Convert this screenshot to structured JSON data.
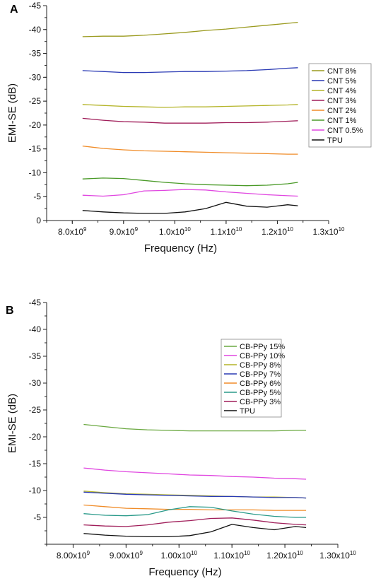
{
  "chart_data": [
    {
      "panel_label": "A",
      "type": "line",
      "xlabel": "Frequency (Hz)",
      "ylabel": "EMI-SE (dB)",
      "xlim": [
        7500000000.0,
        13000000000.0
      ],
      "ylim": [
        0,
        -45
      ],
      "x_ticks": [
        {
          "value": 8000000000.0,
          "mantissa": "8.0x10",
          "exp": "9"
        },
        {
          "value": 9000000000.0,
          "mantissa": "9.0x10",
          "exp": "9"
        },
        {
          "value": 10000000000.0,
          "mantissa": "1.0x10",
          "exp": "10"
        },
        {
          "value": 11000000000.0,
          "mantissa": "1.1x10",
          "exp": "10"
        },
        {
          "value": 12000000000.0,
          "mantissa": "1.2x10",
          "exp": "10"
        },
        {
          "value": 13000000000.0,
          "mantissa": "1.3x10",
          "exp": "10"
        }
      ],
      "y_ticks": [
        {
          "value": -45,
          "label": "-45"
        },
        {
          "value": -40,
          "label": "-40"
        },
        {
          "value": -35,
          "label": "-35"
        },
        {
          "value": -30,
          "label": "-30"
        },
        {
          "value": -25,
          "label": "-25"
        },
        {
          "value": -20,
          "label": "-20"
        },
        {
          "value": -15,
          "label": "-15"
        },
        {
          "value": -10,
          "label": "-10"
        },
        {
          "value": -5,
          "label": "-5"
        },
        {
          "value": 0,
          "label": "0"
        }
      ],
      "legend_position": "right",
      "x": [
        8200000000.0,
        8600000000.0,
        9000000000.0,
        9400000000.0,
        9800000000.0,
        10200000000.0,
        10600000000.0,
        11000000000.0,
        11400000000.0,
        11800000000.0,
        12200000000.0,
        12400000000.0
      ],
      "series": [
        {
          "name": "CNT 8%",
          "color": "#9a9a1e",
          "values": [
            -38.5,
            -38.6,
            -38.6,
            -38.8,
            -39.1,
            -39.4,
            -39.8,
            -40.1,
            -40.5,
            -40.9,
            -41.3,
            -41.5
          ]
        },
        {
          "name": "CNT 5%",
          "color": "#2a3ab4",
          "values": [
            -31.4,
            -31.2,
            -31.0,
            -31.0,
            -31.1,
            -31.2,
            -31.2,
            -31.3,
            -31.4,
            -31.6,
            -31.9,
            -32.0
          ]
        },
        {
          "name": "CNT 4%",
          "color": "#b4b428",
          "values": [
            -24.3,
            -24.1,
            -23.9,
            -23.8,
            -23.7,
            -23.8,
            -23.8,
            -23.9,
            -24.0,
            -24.1,
            -24.2,
            -24.3
          ]
        },
        {
          "name": "CNT 3%",
          "color": "#a01e5a",
          "values": [
            -21.4,
            -21.0,
            -20.7,
            -20.6,
            -20.4,
            -20.4,
            -20.4,
            -20.5,
            -20.5,
            -20.6,
            -20.8,
            -20.9
          ]
        },
        {
          "name": "CNT 2%",
          "color": "#f08c28",
          "values": [
            -15.6,
            -15.1,
            -14.8,
            -14.6,
            -14.5,
            -14.4,
            -14.3,
            -14.2,
            -14.1,
            -14.0,
            -13.9,
            -13.9
          ]
        },
        {
          "name": "CNT 1%",
          "color": "#4a9a28",
          "values": [
            -8.7,
            -8.9,
            -8.8,
            -8.4,
            -8.0,
            -7.7,
            -7.5,
            -7.4,
            -7.3,
            -7.4,
            -7.7,
            -8.0
          ]
        },
        {
          "name": "CNT 0.5%",
          "color": "#e046e0",
          "values": [
            -5.3,
            -5.1,
            -5.4,
            -6.2,
            -6.3,
            -6.5,
            -6.4,
            -6.0,
            -5.7,
            -5.4,
            -5.2,
            -5.1
          ]
        },
        {
          "name": "TPU",
          "color": "#111111",
          "values": [
            -2.1,
            -1.8,
            -1.6,
            -1.5,
            -1.5,
            -1.8,
            -2.5,
            -3.8,
            -3.0,
            -2.8,
            -3.3,
            -3.1
          ]
        }
      ]
    },
    {
      "panel_label": "B",
      "type": "line",
      "xlabel": "Frequency (Hz)",
      "ylabel": "EMI-SE (dB)",
      "xlim": [
        7500000000.0,
        13000000000.0
      ],
      "ylim": [
        0,
        -45
      ],
      "x_ticks": [
        {
          "value": 8000000000.0,
          "mantissa": "8.00x10",
          "exp": "9"
        },
        {
          "value": 9000000000.0,
          "mantissa": "9.00x10",
          "exp": "9"
        },
        {
          "value": 10000000000.0,
          "mantissa": "1.00x10",
          "exp": "10"
        },
        {
          "value": 11000000000.0,
          "mantissa": "1.10x10",
          "exp": "10"
        },
        {
          "value": 12000000000.0,
          "mantissa": "1.20x10",
          "exp": "10"
        },
        {
          "value": 13000000000.0,
          "mantissa": "1.30x10",
          "exp": "10"
        }
      ],
      "y_ticks": [
        {
          "value": -45,
          "label": "-45"
        },
        {
          "value": -40,
          "label": "-40"
        },
        {
          "value": -35,
          "label": "-35"
        },
        {
          "value": -30,
          "label": "-30"
        },
        {
          "value": -25,
          "label": "-25"
        },
        {
          "value": -20,
          "label": "-20"
        },
        {
          "value": -15,
          "label": "-15"
        },
        {
          "value": -10,
          "label": "-10"
        },
        {
          "value": -5,
          "label": "-5"
        }
      ],
      "legend_position": "top-right",
      "x": [
        8200000000.0,
        8600000000.0,
        9000000000.0,
        9400000000.0,
        9800000000.0,
        10200000000.0,
        10600000000.0,
        11000000000.0,
        11400000000.0,
        11800000000.0,
        12200000000.0,
        12400000000.0
      ],
      "series": [
        {
          "name": "CB-PPy 15%",
          "color": "#6aa840",
          "values": [
            -22.3,
            -21.9,
            -21.5,
            -21.3,
            -21.2,
            -21.1,
            -21.1,
            -21.1,
            -21.1,
            -21.1,
            -21.2,
            -21.2
          ]
        },
        {
          "name": "CB-PPy 10%",
          "color": "#e046e0",
          "values": [
            -14.2,
            -13.8,
            -13.5,
            -13.3,
            -13.1,
            -12.9,
            -12.8,
            -12.6,
            -12.5,
            -12.3,
            -12.2,
            -12.1
          ]
        },
        {
          "name": "CB-PPy 8%",
          "color": "#b4b428",
          "values": [
            -9.9,
            -9.6,
            -9.4,
            -9.3,
            -9.2,
            -9.1,
            -9.0,
            -8.9,
            -8.8,
            -8.8,
            -8.7,
            -8.6
          ]
        },
        {
          "name": "CB-PPy 7%",
          "color": "#2a3ab4",
          "values": [
            -9.7,
            -9.5,
            -9.3,
            -9.2,
            -9.1,
            -9.0,
            -8.9,
            -8.9,
            -8.8,
            -8.7,
            -8.7,
            -8.6
          ]
        },
        {
          "name": "CB-PPy 6%",
          "color": "#f08c28",
          "values": [
            -7.3,
            -7.0,
            -6.7,
            -6.6,
            -6.5,
            -6.5,
            -6.4,
            -6.4,
            -6.4,
            -6.3,
            -6.3,
            -6.3
          ]
        },
        {
          "name": "CB-PPy 5%",
          "color": "#2a9a8a",
          "values": [
            -5.7,
            -5.4,
            -5.3,
            -5.5,
            -6.4,
            -7.0,
            -6.9,
            -6.2,
            -5.6,
            -5.2,
            -5.0,
            -5.0
          ]
        },
        {
          "name": "CB-PPy 3%",
          "color": "#a01e5a",
          "values": [
            -3.6,
            -3.4,
            -3.3,
            -3.6,
            -4.1,
            -4.4,
            -4.8,
            -4.9,
            -4.5,
            -4.0,
            -3.7,
            -3.6
          ]
        },
        {
          "name": "TPU",
          "color": "#111111",
          "values": [
            -2.0,
            -1.7,
            -1.5,
            -1.4,
            -1.4,
            -1.6,
            -2.3,
            -3.7,
            -3.1,
            -2.7,
            -3.3,
            -3.1
          ]
        }
      ]
    }
  ]
}
